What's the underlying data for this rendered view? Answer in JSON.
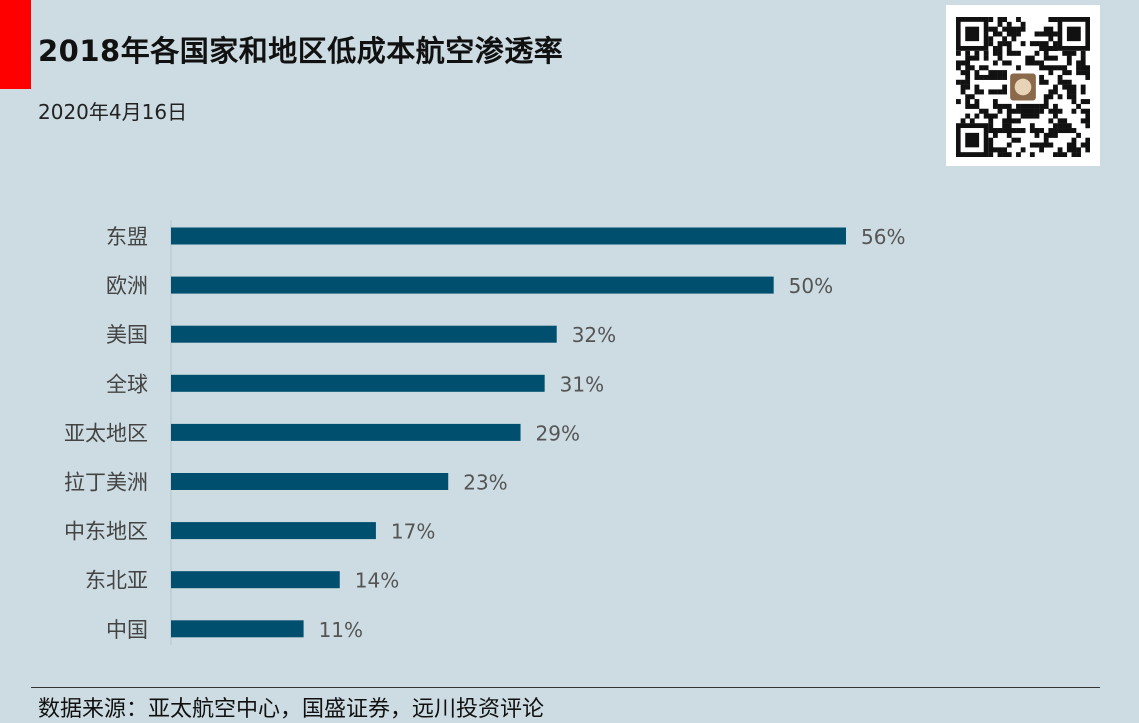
{
  "title": "2018年各国家和地区低成本航空渗透率",
  "subtitle": "2020年4月16日",
  "source": "数据来源：亚太航空中心，国盛证券，远川投资评论",
  "colors": {
    "bar": "#004f6e",
    "background": "#cddce3",
    "accent": "#ff0000"
  },
  "chart_data": {
    "type": "bar",
    "orientation": "horizontal",
    "categories": [
      "东盟",
      "欧洲",
      "美国",
      "全球",
      "亚太地区",
      "拉丁美洲",
      "中东地区",
      "东北亚",
      "中国"
    ],
    "values": [
      56,
      50,
      32,
      31,
      29,
      23,
      17,
      14,
      11
    ],
    "value_labels": [
      "56%",
      "50%",
      "32%",
      "31%",
      "29%",
      "23%",
      "17%",
      "14%",
      "11%"
    ],
    "unit": "%",
    "xlim": [
      0,
      56
    ],
    "grid": false,
    "legend": "none"
  }
}
